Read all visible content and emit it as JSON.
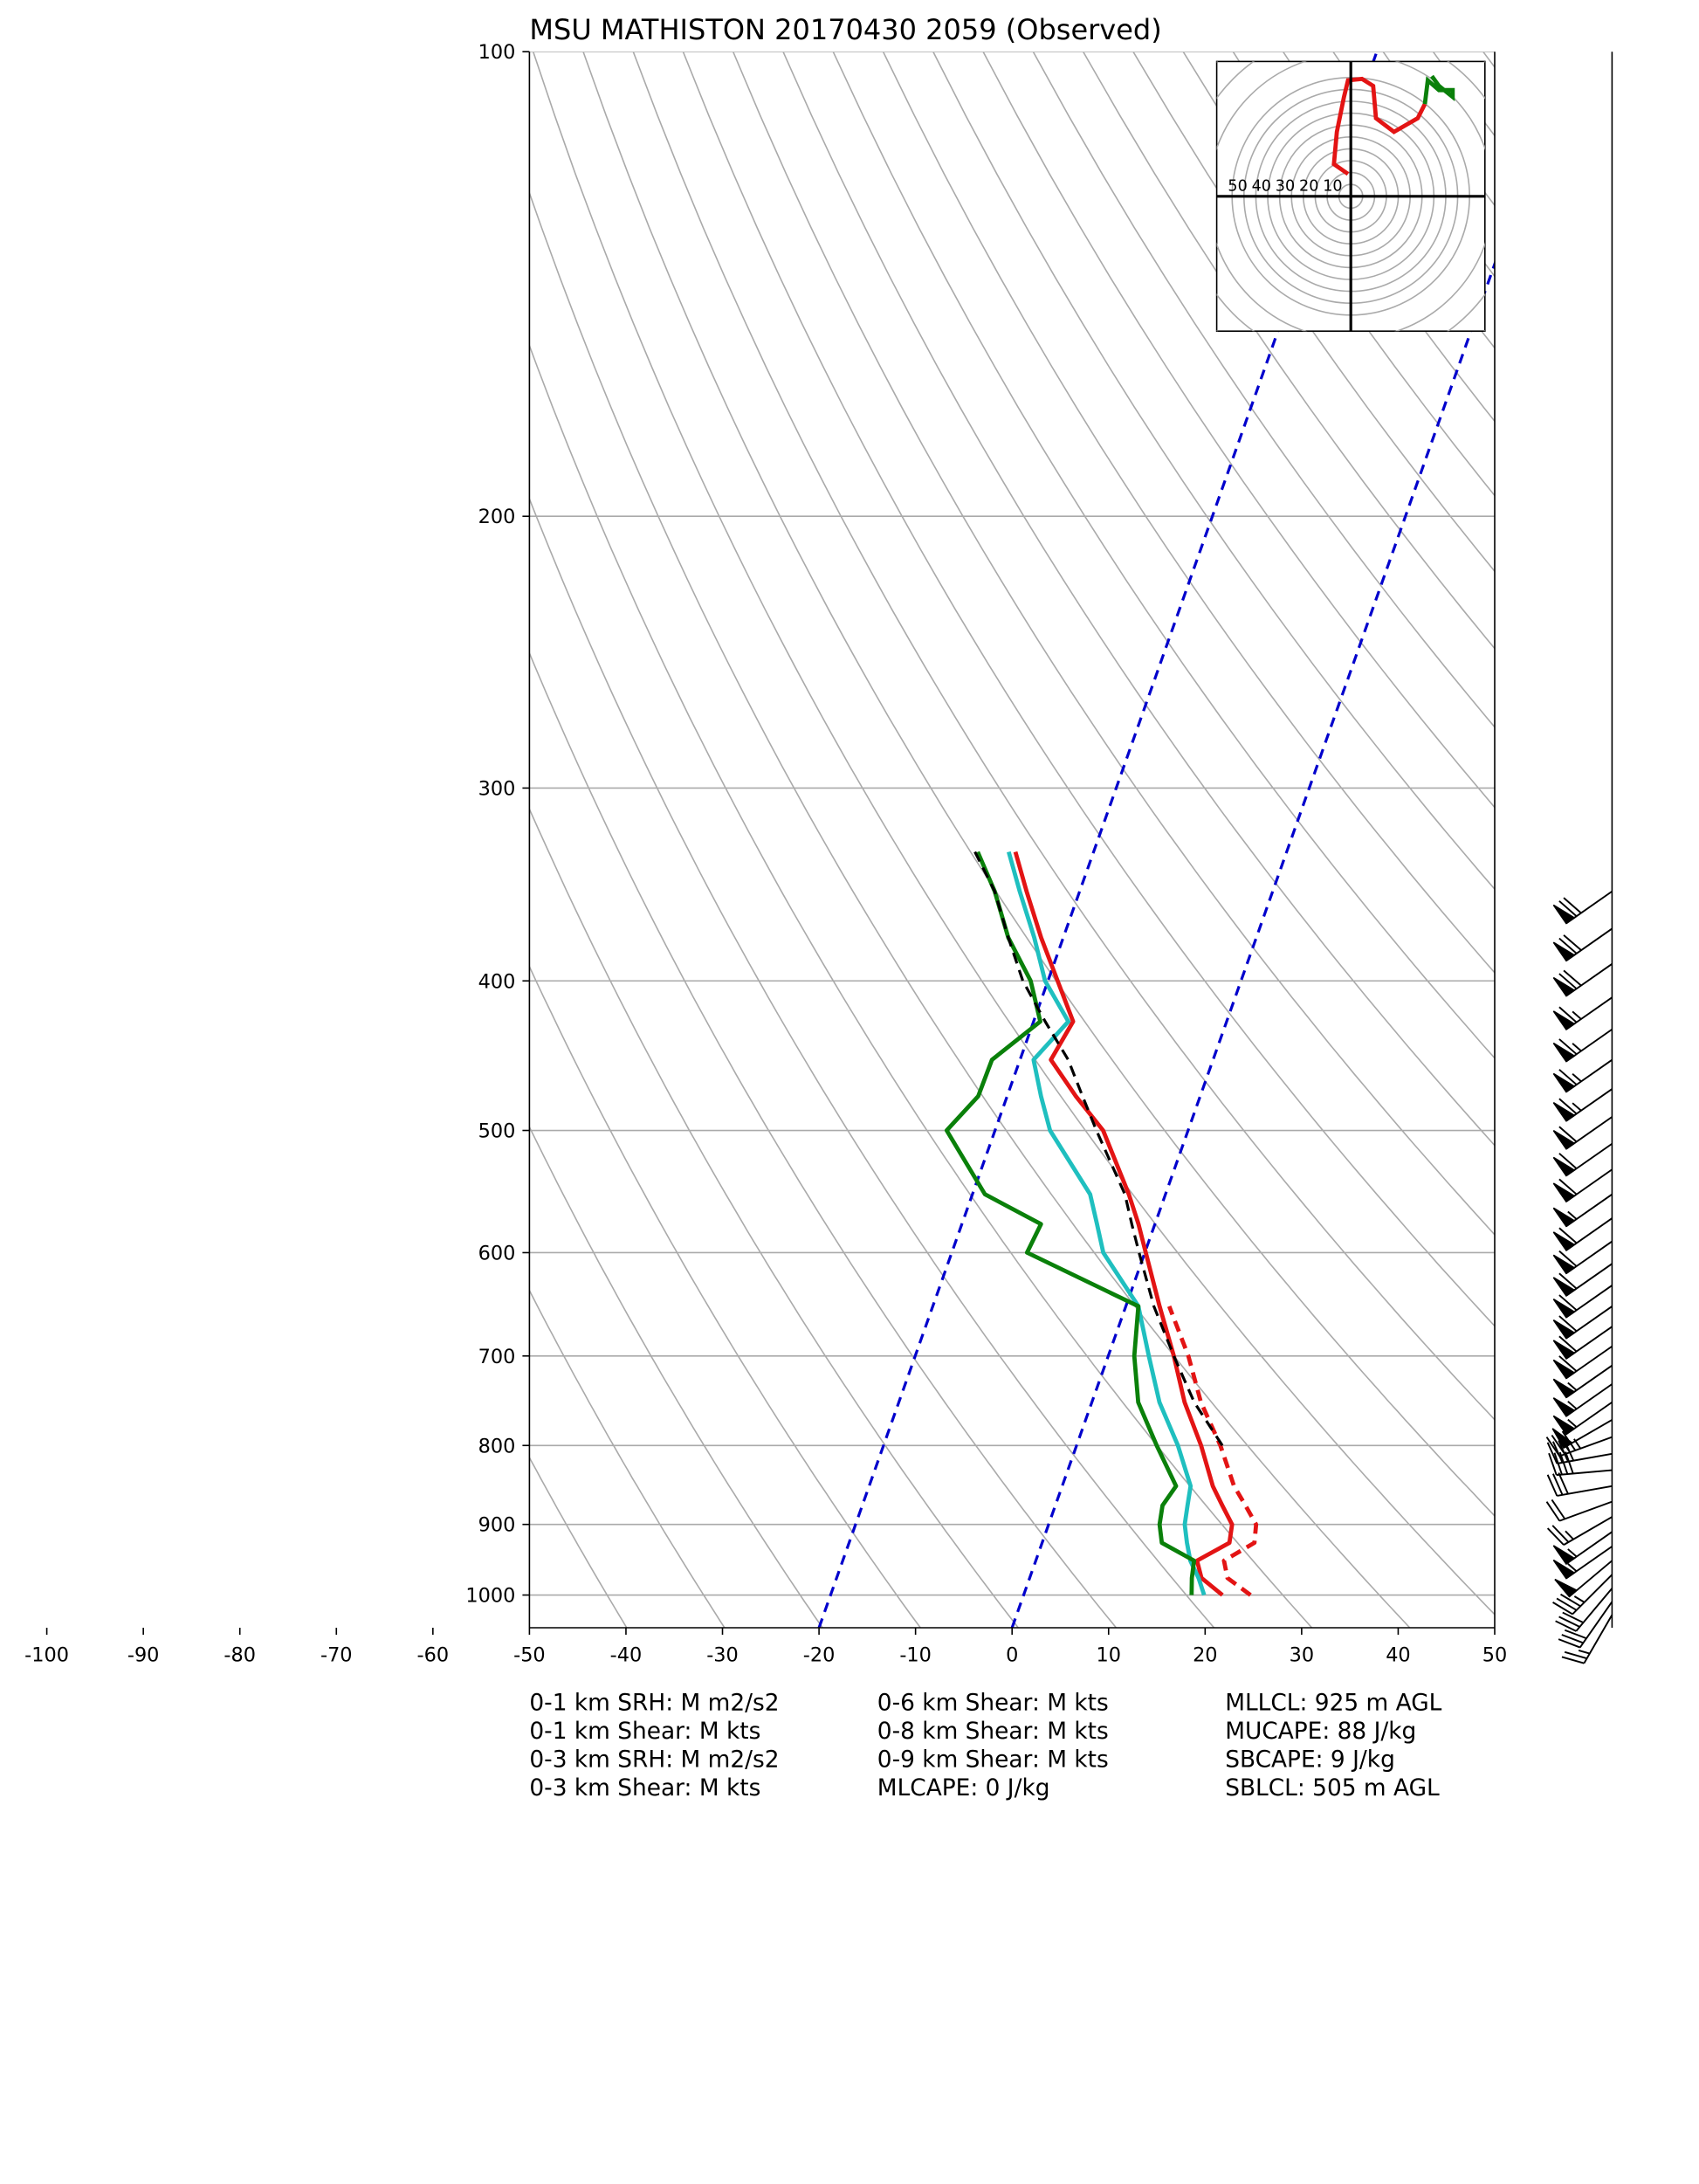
{
  "chart_data": {
    "type": "skewt",
    "title": "MSU MATHISTON 20170430 2059   (Observed)",
    "ylim": [
      1050,
      100
    ],
    "log_y": true,
    "yticks": [
      100,
      200,
      300,
      400,
      500,
      600,
      700,
      800,
      900,
      1000
    ],
    "xlim": [
      -50,
      50
    ],
    "xticks": [
      -100,
      -90,
      -80,
      -70,
      -60,
      -50,
      -40,
      -30,
      -20,
      -10,
      0,
      10,
      20,
      30,
      40,
      50
    ],
    "grid": true,
    "highlight_isotherms": [
      -20,
      0
    ],
    "pressure": [
      1000,
      975,
      950,
      925,
      900,
      875,
      850,
      800,
      750,
      700,
      650,
      600,
      575,
      550,
      500,
      475,
      450,
      425,
      400,
      375,
      350,
      330
    ],
    "series": [
      {
        "color": "#e31414",
        "dashed": true,
        "values": [
          23.5,
          20.5,
          19.5,
          22,
          21.5,
          19.7,
          17.8,
          14.9,
          11.3,
          8.3,
          4.5,
          null,
          null,
          null,
          null,
          null,
          null,
          null,
          null,
          null,
          null,
          null
        ]
      },
      {
        "color": "#e31414",
        "dashed": false,
        "values": [
          20.6,
          17.8,
          16.7,
          19.4,
          19.0,
          17.3,
          15.6,
          12.9,
          9.6,
          6.8,
          3.5,
          0.1,
          -1.7,
          -3.8,
          -8.8,
          -12.9,
          -16.8,
          -15.9,
          -19.0,
          -22.3,
          -25.5,
          -28.1
        ]
      },
      {
        "color": "#1fbfbf",
        "dashed": false,
        "values": [
          18.7,
          17.5,
          16,
          15,
          14.1,
          13.7,
          13.3,
          10.5,
          7,
          4.2,
          1.3,
          -4.3,
          -6,
          -7.8,
          -14.3,
          -16.5,
          -18.6,
          -16.4,
          -20.3,
          -23,
          -26.2,
          -28.8
        ]
      },
      {
        "color": "#0a800a",
        "dashed": false,
        "values": [
          17.4,
          16.8,
          16.4,
          12.4,
          11.5,
          11.1,
          11.8,
          8.3,
          4.8,
          2.7,
          1.3,
          -12.2,
          -11.8,
          -18.7,
          -25,
          -23,
          -22.9,
          -19.3,
          -21.8,
          -25.7,
          -28.8,
          -32
        ]
      },
      {
        "color": "#000000",
        "dashed": true,
        "values": [
          null,
          null,
          null,
          null,
          null,
          null,
          null,
          15.1,
          10.6,
          6.8,
          2.9,
          -0.6,
          -2.4,
          -4.2,
          -9.5,
          -12.2,
          -15,
          -18.8,
          -22.6,
          -25.7,
          -28.8,
          -32.3
        ]
      }
    ],
    "wind_barbs": {
      "pressure": [
        1030,
        1010,
        990,
        970,
        950,
        930,
        910,
        890,
        870,
        850,
        830,
        810,
        790,
        770,
        750,
        730,
        710,
        690,
        670,
        650,
        630,
        610,
        590,
        570,
        550,
        530,
        510,
        490,
        470,
        450,
        430,
        410,
        390,
        370,
        350
      ],
      "speed": [
        25,
        30,
        30,
        35,
        50,
        55,
        55,
        25,
        20,
        30,
        40,
        40,
        45,
        50,
        55,
        55,
        55,
        60,
        60,
        60,
        60,
        60,
        60,
        60,
        55,
        60,
        60,
        60,
        65,
        65,
        65,
        65,
        70,
        70,
        70
      ],
      "direction": [
        210,
        215,
        220,
        225,
        230,
        235,
        235,
        240,
        250,
        260,
        265,
        260,
        250,
        240,
        235,
        235,
        235,
        235,
        235,
        235,
        235,
        235,
        235,
        235,
        235,
        235,
        235,
        235,
        235,
        235,
        235,
        235,
        235,
        235,
        235
      ]
    },
    "hodograph": {
      "rings": [
        10,
        20,
        30,
        40,
        50
      ],
      "traces": [
        {
          "color": "#e31414",
          "u": [
            -1.2,
            -7.1,
            -5.9,
            -2.9,
            -1.2,
            4.7,
            9.4,
            10.6,
            18.2,
            28.2,
            31.2
          ],
          "v": [
            9.4,
            13.5,
            27.1,
            41.8,
            48.8,
            49.4,
            46.5,
            32.9,
            27.1,
            32.9,
            38.8
          ]
        },
        {
          "color": "#0a800a",
          "u": [
            31.2,
            32.4,
            37.1,
            42.9,
            42.9,
            37.1,
            34.1
          ],
          "v": [
            38.8,
            48.8,
            44.7,
            44.7,
            41.8,
            46.5,
            50.6
          ]
        }
      ]
    },
    "indices": [
      [
        "0-1 km SRH: M m2/s2",
        "0-1 km Shear: M kts",
        "0-3 km SRH: M m2/s2",
        "0-3 km Shear: M kts"
      ],
      [
        "0-6 km Shear: M kts",
        "0-8 km Shear: M kts",
        "0-9 km Shear: M kts",
        "MLCAPE: 0 J/kg"
      ],
      [
        "MLLCL: 925 m AGL",
        "MUCAPE: 88 J/kg",
        "SBCAPE: 9 J/kg",
        "SBLCL: 505 m AGL"
      ]
    ]
  }
}
